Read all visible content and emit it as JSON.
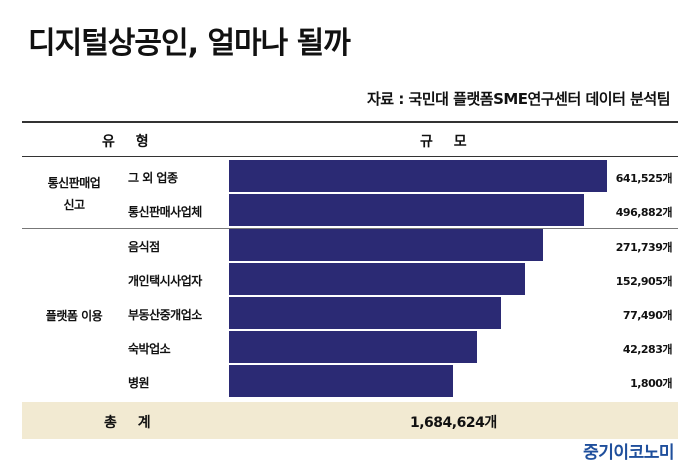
{
  "title": "디지털상공인, 얼마나 될까",
  "source": "자료 : 국민대 플랫폼SME연구센터 데이터 분석팀",
  "header": {
    "type": "유 형",
    "scale": "규 모"
  },
  "groups": [
    {
      "label": "통신판매업\n신고"
    },
    {
      "label": "플랫폼 이용"
    }
  ],
  "total": {
    "label": "총 계",
    "value": "1,684,624개"
  },
  "brand": "중기이코노미",
  "chart_data": {
    "type": "bar",
    "orientation": "horizontal",
    "categories": [
      "그 외 업종",
      "통신판매사업체",
      "음식점",
      "개인택시사업자",
      "부동산중개업소",
      "숙박업소",
      "병원"
    ],
    "value_labels": [
      "641,525개",
      "496,882개",
      "271,739개",
      "152,905개",
      "77,490개",
      "42,283개",
      "1,800개"
    ],
    "values": [
      641525,
      496882,
      271739,
      152905,
      77490,
      42283,
      1800
    ],
    "groups": [
      {
        "name": "통신판매업 신고",
        "categories": [
          "그 외 업종",
          "통신판매사업체"
        ]
      },
      {
        "name": "플랫폼 이용",
        "categories": [
          "음식점",
          "개인택시사업자",
          "부동산중개업소",
          "숙박업소",
          "병원"
        ]
      }
    ],
    "title": "디지털상공인, 얼마나 될까",
    "color": "#2b2a74",
    "axis_scale": "non-linear (visual funnel)",
    "grid": false,
    "legend": "none"
  }
}
